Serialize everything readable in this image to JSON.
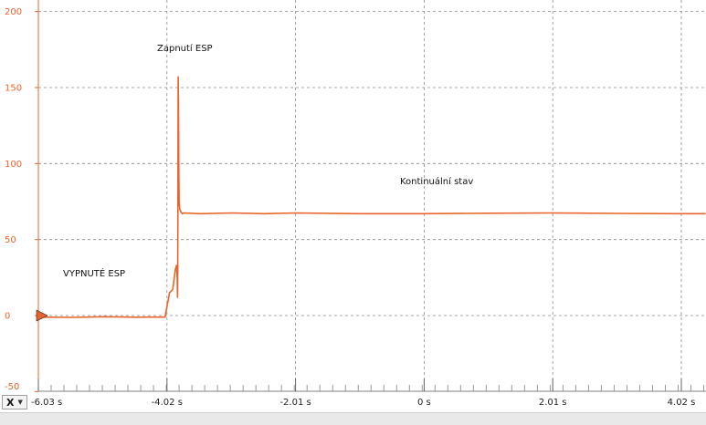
{
  "chart_data": {
    "type": "line",
    "y_ticks": [
      200,
      150,
      100,
      50,
      0,
      -50
    ],
    "x_ticks": [
      "-6.03 s",
      "-4.02 s",
      "-2.01 s",
      "0 s",
      "2.01 s",
      "4.02 s"
    ],
    "ylim": [
      -50,
      200
    ],
    "xlim": [
      -6.03,
      4.4
    ],
    "grid": true,
    "series_color": "#e8642a",
    "series": [
      {
        "x": [
          -6.03,
          -5.5,
          -5.0,
          -4.5,
          -4.3,
          -4.05,
          -3.98,
          -3.93,
          -3.89,
          -3.87,
          -3.86,
          -3.855,
          -3.85,
          -3.845,
          -3.84,
          -3.835,
          -3.83,
          -3.82,
          -3.8,
          -3.78,
          -3.75,
          -3.5,
          -3.0,
          -2.5,
          -2.0,
          -1.0,
          0.0,
          1.0,
          2.0,
          3.0,
          4.0,
          4.4
        ],
        "y": [
          -1,
          -1.2,
          -0.8,
          -1.1,
          -1,
          -1,
          15,
          17,
          30,
          33,
          25,
          12,
          45,
          157,
          142,
          95,
          75,
          70,
          68,
          67,
          67.5,
          67,
          67.5,
          67,
          67.5,
          67,
          67,
          67.3,
          67.5,
          67.2,
          67,
          67
        ]
      }
    ],
    "annotations": {
      "off": "VYPNUTÉ ESP",
      "on": "Zapnutí ESP",
      "steady": "Kontinuální stav"
    }
  },
  "x_axis_selector": {
    "label": "X",
    "icon": "chevron-down-icon"
  }
}
